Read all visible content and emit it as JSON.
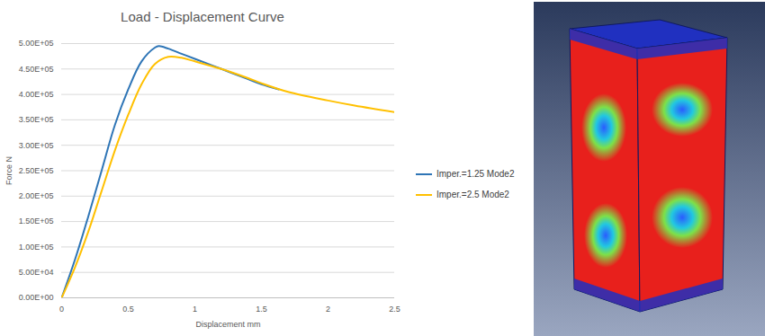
{
  "chart_data": {
    "type": "line",
    "title": "Load - Displacement Curve",
    "x_label": "Displacement mm",
    "y_label": "Force N",
    "xlim": [
      0,
      2.5
    ],
    "xticks": [
      0,
      0.5,
      1,
      1.5,
      2,
      2.5
    ],
    "ylim": [
      0,
      500000
    ],
    "yticks": [
      {
        "value": 0,
        "label": "0.00E+00"
      },
      {
        "value": 50000,
        "label": "5.00E+04"
      },
      {
        "value": 100000,
        "label": "1.00E+05"
      },
      {
        "value": 150000,
        "label": "1.50E+05"
      },
      {
        "value": 200000,
        "label": "2.00E+05"
      },
      {
        "value": 250000,
        "label": "2.50E+05"
      },
      {
        "value": 300000,
        "label": "3.00E+05"
      },
      {
        "value": 350000,
        "label": "3.50E+05"
      },
      {
        "value": 400000,
        "label": "4.00E+05"
      },
      {
        "value": 450000,
        "label": "4.50E+05"
      },
      {
        "value": 500000,
        "label": "5.00E+05"
      }
    ],
    "grid": true,
    "legend": "right",
    "series": [
      {
        "name": "Imper.=1.25 Mode2",
        "color": "#2e75b6",
        "x": [
          0,
          0.1,
          0.2,
          0.3,
          0.4,
          0.5,
          0.6,
          0.7,
          0.73,
          0.8,
          0.9,
          1.0,
          1.2,
          1.4,
          1.5,
          1.63
        ],
        "values": [
          0,
          75000,
          160000,
          250000,
          340000,
          410000,
          465000,
          492000,
          495000,
          490000,
          480000,
          470000,
          450000,
          430000,
          420000,
          410000
        ]
      },
      {
        "name": "Imper.=2.5 Mode2",
        "color": "#ffc000",
        "x": [
          0,
          0.1,
          0.2,
          0.3,
          0.4,
          0.5,
          0.6,
          0.7,
          0.8,
          0.9,
          1.0,
          1.2,
          1.4,
          1.5,
          1.7,
          2.0,
          2.2,
          2.5
        ],
        "values": [
          0,
          60000,
          130000,
          210000,
          290000,
          360000,
          420000,
          460000,
          474000,
          472000,
          465000,
          450000,
          432000,
          422000,
          405000,
          388000,
          378000,
          365000
        ]
      }
    ]
  }
}
